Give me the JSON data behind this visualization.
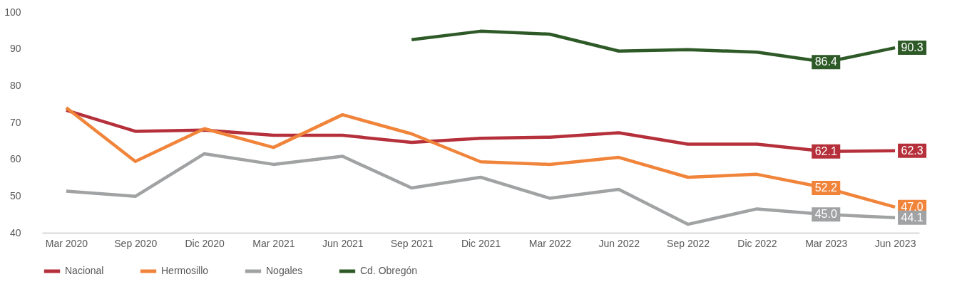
{
  "chart_data": {
    "type": "line",
    "categories": [
      "Mar 2020",
      "Sep 2020",
      "Dic 2020",
      "Mar 2021",
      "Jun 2021",
      "Sep 2021",
      "Dic 2021",
      "Mar 2022",
      "Jun 2022",
      "Sep 2022",
      "Dic 2022",
      "Mar 2023",
      "Jun 2023"
    ],
    "series": [
      {
        "name": "Nacional",
        "color": "#b5303a",
        "values": [
          73.3,
          67.6,
          67.9,
          66.5,
          66.5,
          64.6,
          65.7,
          66.0,
          67.2,
          64.1,
          64.1,
          62.1,
          62.3
        ],
        "value_labels": [
          null,
          null,
          null,
          null,
          null,
          null,
          null,
          null,
          null,
          null,
          null,
          "62.1",
          "62.3"
        ]
      },
      {
        "name": "Hermosillo",
        "color": "#f0843a",
        "values": [
          74.0,
          59.4,
          68.3,
          63.2,
          72.1,
          66.9,
          59.3,
          58.6,
          60.5,
          55.1,
          55.9,
          52.2,
          47.0
        ],
        "value_labels": [
          null,
          null,
          null,
          null,
          null,
          null,
          null,
          null,
          null,
          null,
          null,
          "52.2",
          "47.0"
        ]
      },
      {
        "name": "Nogales",
        "color": "#a0a2a3",
        "values": [
          51.3,
          49.9,
          61.5,
          58.6,
          60.8,
          52.2,
          55.1,
          49.4,
          51.8,
          42.3,
          46.5,
          45.0,
          44.1
        ],
        "value_labels": [
          null,
          null,
          null,
          null,
          null,
          null,
          null,
          null,
          null,
          null,
          null,
          "45.0",
          "44.1"
        ]
      },
      {
        "name": "Cd. Obregón",
        "color": "#2e5a27",
        "values": [
          null,
          null,
          null,
          null,
          null,
          92.5,
          94.8,
          94.0,
          89.4,
          89.8,
          89.1,
          86.4,
          90.3
        ],
        "value_labels": [
          null,
          null,
          null,
          null,
          null,
          null,
          null,
          null,
          null,
          null,
          null,
          "86.4",
          "90.3"
        ]
      }
    ],
    "ylim": [
      40,
      100
    ],
    "yticks": [
      40,
      50,
      60,
      70,
      80,
      90,
      100
    ],
    "grid": false,
    "legend": "bottom",
    "line_style": "solid",
    "marker": "none"
  }
}
